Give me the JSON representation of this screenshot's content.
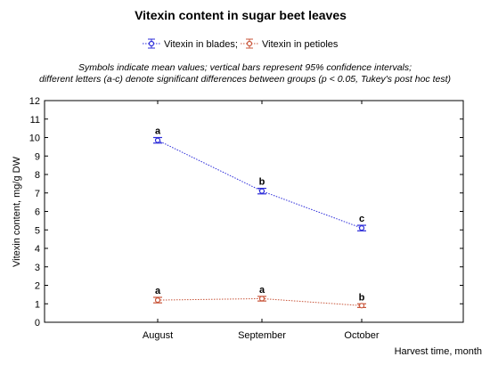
{
  "chart_data": {
    "type": "line",
    "title": "Vitexin content in sugar beet leaves",
    "notes": [
      "Symbols indicate mean values; vertical bars represent 95% confidence intervals;",
      "different letters (a-c) denote significant differences between groups (p < 0.05, Tukey's post hoc test)"
    ],
    "xlabel": "Harvest time, month",
    "ylabel": "Vitexin content, mg/g DW",
    "categories": [
      "August",
      "September",
      "October"
    ],
    "ylim": [
      0,
      12
    ],
    "yticks": [
      0,
      1,
      2,
      3,
      4,
      5,
      6,
      7,
      8,
      9,
      10,
      11,
      12
    ],
    "grid": false,
    "legend_position": "top-center",
    "series": [
      {
        "name": "Vitexin in blades;",
        "color": "#2b2bd9",
        "marker": "circle",
        "values": [
          9.85,
          7.1,
          5.1
        ],
        "ci_low": [
          9.7,
          6.95,
          4.95
        ],
        "ci_high": [
          10.0,
          7.25,
          5.25
        ],
        "letters": [
          "a",
          "b",
          "c"
        ]
      },
      {
        "name": "Vitexin in petioles",
        "color": "#c8553a",
        "marker": "circle",
        "values": [
          1.2,
          1.28,
          0.9
        ],
        "ci_low": [
          1.05,
          1.15,
          0.8
        ],
        "ci_high": [
          1.35,
          1.4,
          1.0
        ],
        "letters": [
          "a",
          "a",
          "b"
        ]
      }
    ]
  }
}
